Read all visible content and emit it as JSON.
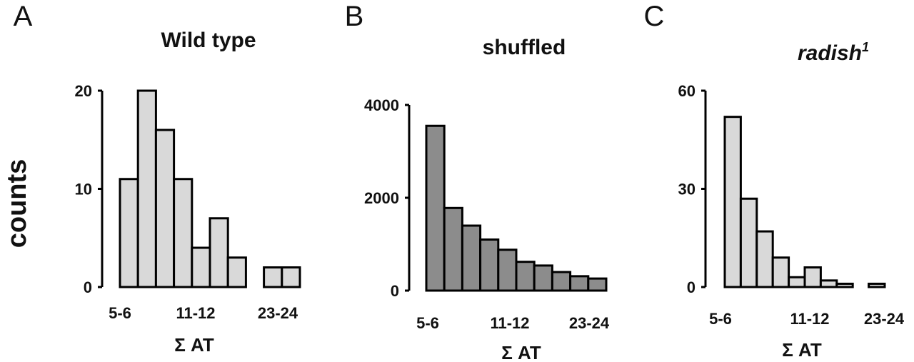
{
  "figure": {
    "ylabel_shared": "counts",
    "bar_colors": {
      "light": "#d9d9d9",
      "dark": "#8c8c8c"
    }
  },
  "chart_data": [
    {
      "panel": "A",
      "type": "bar",
      "title": "Wild type",
      "title_italic": false,
      "title_superscript": "",
      "xlabel": "Σ AT",
      "x_tick_labels": [
        "5-6",
        "11-12",
        "23-24"
      ],
      "y_ticks": [
        0,
        10,
        20
      ],
      "ylim": [
        0,
        20
      ],
      "bar_color": "#d9d9d9",
      "values": [
        11,
        20,
        16,
        11,
        4,
        7,
        3,
        0,
        2,
        2
      ]
    },
    {
      "panel": "B",
      "type": "bar",
      "title": "shuffled",
      "title_italic": false,
      "title_superscript": "",
      "xlabel": "Σ AT",
      "x_tick_labels": [
        "5-6",
        "11-12",
        "23-24"
      ],
      "y_ticks": [
        0,
        2000,
        4000
      ],
      "ylim": [
        0,
        4000
      ],
      "bar_color": "#8c8c8c",
      "values": [
        3550,
        1780,
        1400,
        1100,
        880,
        620,
        540,
        400,
        310,
        260
      ]
    },
    {
      "panel": "C",
      "type": "bar",
      "title": "radish",
      "title_italic": true,
      "title_superscript": "1",
      "xlabel": "Σ AT",
      "x_tick_labels": [
        "5-6",
        "11-12",
        "23-24"
      ],
      "y_ticks": [
        0,
        30,
        60
      ],
      "ylim": [
        0,
        60
      ],
      "bar_color": "#d9d9d9",
      "values": [
        52,
        27,
        17,
        9,
        3,
        6,
        2,
        1,
        0,
        1
      ]
    }
  ]
}
